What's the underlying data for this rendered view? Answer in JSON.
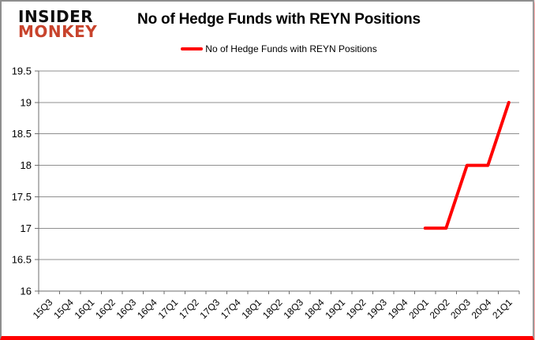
{
  "logo": {
    "line1": "INSIDER",
    "line2": "MONKEY"
  },
  "header": {
    "title": "No of Hedge Funds with REYN Positions"
  },
  "legend": {
    "label": "No of Hedge Funds with REYN Positions"
  },
  "colors": {
    "series_red": "#ff0000",
    "logo_black": "#0d0d0d",
    "logo_red": "#c8432c",
    "grid_gray": "#8f8f8f",
    "axis_gray": "#6e6e6e",
    "bottom_border_red": "#ff0000"
  },
  "chart_data": {
    "type": "line",
    "title": "No of Hedge Funds with REYN Positions",
    "xlabel": "",
    "ylabel": "",
    "categories": [
      "15Q3",
      "15Q4",
      "16Q1",
      "16Q2",
      "16Q3",
      "16Q4",
      "17Q1",
      "17Q2",
      "17Q3",
      "17Q4",
      "18Q1",
      "18Q2",
      "18Q3",
      "18Q4",
      "19Q1",
      "19Q2",
      "19Q3",
      "19Q4",
      "20Q1",
      "20Q2",
      "20Q3",
      "20Q4",
      "21Q1"
    ],
    "series": [
      {
        "name": "No of Hedge Funds with REYN Positions",
        "color": "#ff0000",
        "values": [
          null,
          null,
          null,
          null,
          null,
          null,
          null,
          null,
          null,
          null,
          null,
          null,
          null,
          null,
          null,
          null,
          null,
          null,
          17,
          17,
          18,
          18,
          19
        ]
      }
    ],
    "ylim": [
      16,
      19.5
    ],
    "ytick_step": 0.5,
    "grid": true,
    "legend_position": "top-center"
  }
}
